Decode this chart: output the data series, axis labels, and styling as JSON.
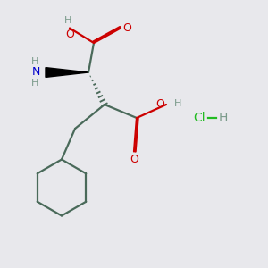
{
  "bg_color": "#e8e8ec",
  "bond_color": "#4a6a5a",
  "oxygen_color": "#cc0000",
  "nitrogen_color": "#0000cc",
  "hcl_color": "#22bb22",
  "h_color": "#7a9a8a",
  "line_width": 1.6,
  "wedge_color": "#000000",
  "figsize": [
    3.0,
    3.0
  ],
  "dpi": 100,
  "xlim": [
    0,
    10
  ],
  "ylim": [
    0,
    10
  ]
}
